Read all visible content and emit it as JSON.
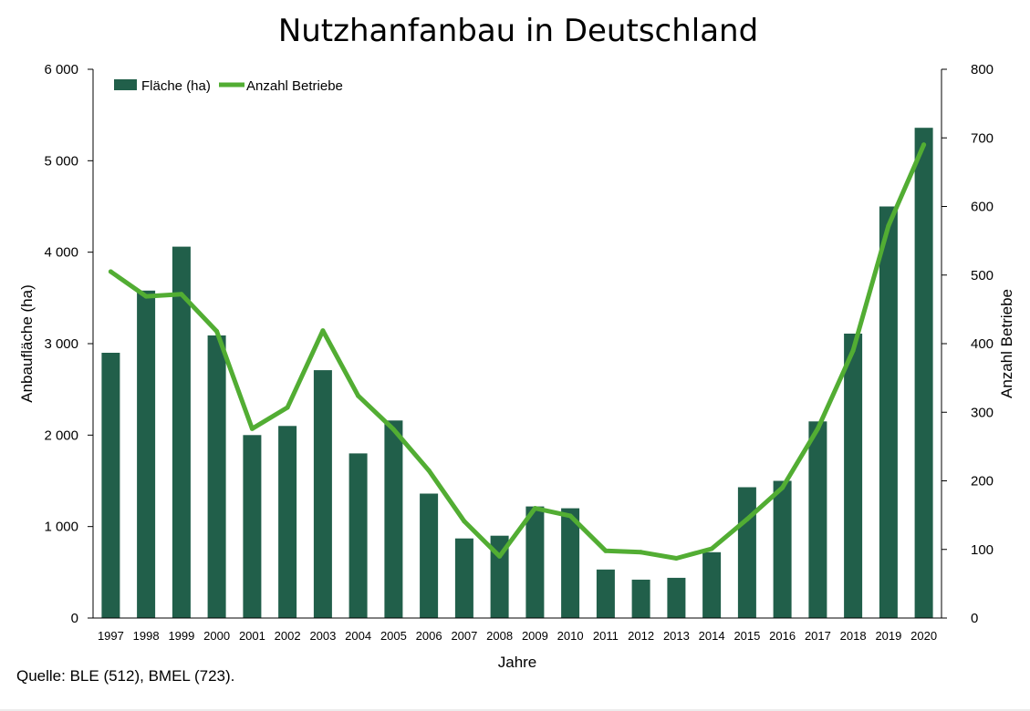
{
  "chart_data": {
    "type": "bar",
    "title": "Nutzhanfanbau  in Deutschland",
    "xlabel": "Jahre",
    "ylabel": "Anbaufläche (ha)",
    "y2label": "Anzahl Betriebe",
    "source": "Quelle: BLE (512), BMEL (723).",
    "categories": [
      "1997",
      "1998",
      "1999",
      "2000",
      "2001",
      "2002",
      "2003",
      "2004",
      "2005",
      "2006",
      "2007",
      "2008",
      "2009",
      "2010",
      "2011",
      "2012",
      "2013",
      "2014",
      "2015",
      "2016",
      "2017",
      "2018",
      "2019",
      "2020"
    ],
    "series": [
      {
        "name": "Fläche (ha)",
        "type": "bar",
        "axis": "left",
        "color": "#215f4a",
        "values": [
          2900,
          3580,
          4060,
          3090,
          2000,
          2100,
          2710,
          1800,
          2160,
          1360,
          870,
          900,
          1220,
          1200,
          530,
          420,
          440,
          720,
          1430,
          1500,
          2150,
          3110,
          4500,
          5360
        ]
      },
      {
        "name": "Anzahl Betriebe",
        "type": "line",
        "axis": "right",
        "color": "#52ad33",
        "values": [
          505,
          469,
          472,
          418,
          276,
          307,
          419,
          324,
          275,
          215,
          141,
          90,
          160,
          149,
          98,
          96,
          87,
          101,
          144,
          190,
          276,
          390,
          572,
          690
        ]
      }
    ],
    "ylim": [
      0,
      6000
    ],
    "yticks": [
      "0",
      "1 000",
      "2 000",
      "3 000",
      "4 000",
      "5 000",
      "6 000"
    ],
    "y2lim": [
      0,
      800
    ],
    "y2ticks": [
      "0",
      "100",
      "200",
      "300",
      "400",
      "500",
      "600",
      "700",
      "800"
    ],
    "grid": false,
    "legend": "top-left"
  }
}
